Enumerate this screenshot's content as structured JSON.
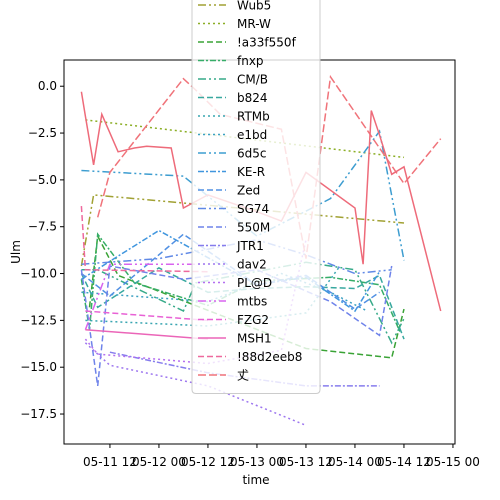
{
  "chart_data": {
    "type": "line",
    "xlabel": "time",
    "ylabel": "Ulm",
    "x_ticks": [
      "05-11 12",
      "05-12 00",
      "05-12 12",
      "05-13 00",
      "05-13 12",
      "05-14 00",
      "05-14 12",
      "05-15 00"
    ],
    "x_range": [
      "05-11 00:45",
      "05-15 00:30"
    ],
    "y_ticks": [
      0.0,
      -2.5,
      -5.0,
      -7.5,
      -10.0,
      -12.5,
      -15.0,
      -17.5
    ],
    "y_tick_labels": [
      "0.0",
      "−2.5",
      "−5.0",
      "−7.5",
      "−10.0",
      "−12.5",
      "−15.0",
      "−17.5"
    ],
    "ylim": [
      -19.1,
      1.4
    ],
    "grid": false,
    "legend_position": "upper center",
    "series": [
      {
        "name": "Wub5",
        "color": "#a1a133",
        "dash": "8,3,2,3,2,3",
        "points": [
          [
            "05-11 05:00",
            -9.6
          ],
          [
            "05-11 08:00",
            -5.8
          ],
          [
            "05-14 12:00",
            -7.3
          ]
        ]
      },
      {
        "name": "MR-W",
        "color": "#8bae25",
        "dash": "2,3",
        "points": [
          [
            "05-11 06:00",
            -1.8
          ],
          [
            "05-14 12:00",
            -3.8
          ]
        ]
      },
      {
        "name": "!a33f550f",
        "color": "#3aa336",
        "dash": "6,3",
        "points": [
          [
            "05-11 07:00",
            -11.8
          ],
          [
            "05-11 09:00",
            -8.0
          ],
          [
            "05-11 14:00",
            -10.1
          ],
          [
            "05-13 12:00",
            -14.0
          ],
          [
            "05-14 09:00",
            -14.5
          ],
          [
            "05-14 12:00",
            -11.9
          ]
        ]
      },
      {
        "name": "fnxp",
        "color": "#36ad68",
        "dash": "6,2,2,2",
        "points": [
          [
            "05-11 05:00",
            -10.3
          ],
          [
            "05-11 07:00",
            -13.0
          ],
          [
            "05-11 09:00",
            -7.9
          ],
          [
            "05-11 18:00",
            -10.5
          ],
          [
            "05-12 12:00",
            -11.7
          ],
          [
            "05-13 00:00",
            -10.4
          ],
          [
            "05-13 18:00",
            -10.2
          ],
          [
            "05-14 06:00",
            -10.6
          ],
          [
            "05-14 11:00",
            -13.1
          ]
        ]
      },
      {
        "name": "CM/B",
        "color": "#37aa89",
        "dash": "8,3,2,3,2,3",
        "points": [
          [
            "05-11 05:00",
            -9.8
          ],
          [
            "05-11 09:00",
            -9.8
          ],
          [
            "05-12 06:00",
            -12.0
          ],
          [
            "05-12 09:00",
            -10.5
          ],
          [
            "05-13 12:00",
            -9.4
          ],
          [
            "05-14 00:00",
            -9.8
          ],
          [
            "05-14 09:00",
            -13.7
          ],
          [
            "05-14 12:00",
            -12.4
          ]
        ]
      },
      {
        "name": "b824",
        "color": "#38a89f",
        "dash": "6,3",
        "points": [
          [
            "05-11 05:00",
            -10.0
          ],
          [
            "05-11 09:00",
            -11.8
          ],
          [
            "05-12 00:00",
            -9.7
          ],
          [
            "05-12 12:00",
            -11.0
          ],
          [
            "05-13 00:00",
            -10.8
          ],
          [
            "05-13 12:00",
            -10.7
          ],
          [
            "05-14 00:00",
            -10.8
          ],
          [
            "05-14 06:00",
            -10.1
          ],
          [
            "05-14 12:00",
            -13.5
          ]
        ]
      },
      {
        "name": "RTMb",
        "color": "#39a5b1",
        "dash": "2,3",
        "points": [
          [
            "05-11 06:00",
            -12.5
          ],
          [
            "05-12 12:00",
            -12.8
          ],
          [
            "05-13 12:00",
            -12.1
          ],
          [
            "05-13 20:00",
            -9.7
          ]
        ]
      },
      {
        "name": "e1bd",
        "color": "#3ba1c1",
        "dash": "2,3",
        "points": [
          [
            "05-11 05:00",
            -11.0
          ],
          [
            "05-12 12:00",
            -11.5
          ],
          [
            "05-13 06:00",
            -10.0
          ],
          [
            "05-13 18:00",
            -11.0
          ],
          [
            "05-14 03:00",
            -12.0
          ]
        ]
      },
      {
        "name": "6d5c",
        "color": "#3d9dd0",
        "dash": "8,3,2,3,2,3",
        "points": [
          [
            "05-11 05:00",
            -4.5
          ],
          [
            "05-12 06:00",
            -4.8
          ],
          [
            "05-13 00:00",
            -8.0
          ],
          [
            "05-13 18:00",
            -6.0
          ],
          [
            "05-14 06:00",
            -2.4
          ],
          [
            "05-14 12:00",
            -9.3
          ]
        ]
      },
      {
        "name": "KE-R",
        "color": "#4096de",
        "dash": "6,2,2,2",
        "points": [
          [
            "05-11 05:00",
            -10.3
          ],
          [
            "05-12 00:00",
            -7.7
          ],
          [
            "05-13 00:00",
            -10.6
          ],
          [
            "05-13 12:00",
            -10.2
          ],
          [
            "05-14 00:00",
            -12.0
          ],
          [
            "05-14 06:00",
            -9.9
          ]
        ]
      },
      {
        "name": "Zed",
        "color": "#5190e3",
        "dash": "6,3",
        "points": [
          [
            "05-11 05:00",
            -10.0
          ],
          [
            "05-11 12:00",
            -11.2
          ],
          [
            "05-12 06:00",
            -7.9
          ],
          [
            "05-13 00:00",
            -10.6
          ],
          [
            "05-13 12:00",
            -10.1
          ],
          [
            "05-14 00:00",
            -11.9
          ],
          [
            "05-14 06:00",
            -11.0
          ]
        ]
      },
      {
        "name": "SG74",
        "color": "#6089e6",
        "dash": "8,3,2,3,2,3",
        "points": [
          [
            "05-11 05:00",
            -9.5
          ],
          [
            "05-12 00:00",
            -9.2
          ],
          [
            "05-13 00:00",
            -8.2
          ],
          [
            "05-13 12:00",
            -9.0
          ],
          [
            "05-14 00:00",
            -10.0
          ],
          [
            "05-14 09:00",
            -9.8
          ]
        ]
      },
      {
        "name": "550M",
        "color": "#6f83ea",
        "dash": "6,3",
        "points": [
          [
            "05-11 05:00",
            -9.8
          ],
          [
            "05-11 09:00",
            -16.0
          ],
          [
            "05-11 12:00",
            -9.6
          ],
          [
            "05-12 06:00",
            -10.3
          ],
          [
            "05-13 00:00",
            -9.8
          ],
          [
            "05-13 18:00",
            -11.5
          ],
          [
            "05-14 06:00",
            -13.3
          ],
          [
            "05-14 09:00",
            -9.6
          ]
        ]
      },
      {
        "name": "JTR1",
        "color": "#867ced",
        "dash": "6,2,2,2",
        "points": [
          [
            "05-11 12:00",
            -14.2
          ],
          [
            "05-12 12:00",
            -15.3
          ],
          [
            "05-13 12:00",
            -16.0
          ],
          [
            "05-14 06:00",
            -16.0
          ]
        ]
      },
      {
        "name": "dav2",
        "color": "#9d76ef",
        "dash": "2,3",
        "points": [
          [
            "05-11 06:00",
            -13.7
          ],
          [
            "05-11 12:00",
            -14.9
          ],
          [
            "05-12 12:00",
            -16.0
          ],
          [
            "05-13 12:00",
            -18.1
          ]
        ]
      },
      {
        "name": "PL@D",
        "color": "#b46ff0",
        "dash": "2,3",
        "points": [
          [
            "05-11 06:00",
            -13.5
          ],
          [
            "05-11 09:00",
            -14.3
          ],
          [
            "05-12 12:00",
            -14.8
          ],
          [
            "05-13 06:00",
            -14.1
          ],
          [
            "05-13 12:00",
            -8.2
          ]
        ]
      },
      {
        "name": "mtbs",
        "color": "#d864ef",
        "dash": "8,3,2,3,2,3",
        "points": [
          [
            "05-11 06:00",
            -13.0
          ],
          [
            "05-11 12:00",
            -9.5
          ],
          [
            "05-12 12:00",
            -9.5
          ]
        ]
      },
      {
        "name": "FZG2",
        "color": "#e861d5",
        "dash": "6,3",
        "points": [
          [
            "05-11 06:00",
            -12.0
          ],
          [
            "05-12 12:00",
            -12.5
          ]
        ]
      },
      {
        "name": "MSH1",
        "color": "#eb65b8",
        "dash": "",
        "points": [
          [
            "05-11 06:00",
            -13.0
          ],
          [
            "05-12 12:00",
            -13.5
          ]
        ]
      },
      {
        "name": "!88d2eeb8",
        "color": "#ee699d",
        "dash": "6,3",
        "points": [
          [
            "05-11 05:00",
            -6.4
          ],
          [
            "05-11 06:00",
            -9.8
          ],
          [
            "05-12 12:00",
            -9.9
          ]
        ]
      },
      {
        "name": "𠀋",
        "color": "#f0737a",
        "dash": "8,3",
        "points": [
          [
            "05-11 09:00",
            -7.0
          ],
          [
            "05-11 12:00",
            -4.6
          ],
          [
            "05-12 06:00",
            0.4
          ],
          [
            "05-12 09:00",
            -0.2
          ],
          [
            "05-12 15:00",
            -1.5
          ],
          [
            "05-13 06:00",
            -2.3
          ],
          [
            "05-13 12:00",
            -9.2
          ],
          [
            "05-13 18:00",
            0.5
          ],
          [
            "05-14 12:00",
            -5.2
          ],
          [
            "05-14 21:00",
            -2.8
          ]
        ]
      },
      {
        "name": "",
        "color": "#ee6b7a",
        "dash": "",
        "points": [
          [
            "05-11 05:00",
            -0.3
          ],
          [
            "05-11 06:00",
            -1.6
          ],
          [
            "05-11 08:00",
            -4.2
          ],
          [
            "05-11 10:00",
            -1.5
          ],
          [
            "05-11 14:00",
            -3.5
          ],
          [
            "05-11 18:00",
            -3.3
          ],
          [
            "05-11 21:00",
            -3.2
          ],
          [
            "05-12 03:00",
            -3.3
          ],
          [
            "05-12 06:00",
            -6.5
          ],
          [
            "05-12 12:00",
            -5.8
          ],
          [
            "05-13 00:00",
            -6.7
          ],
          [
            "05-13 06:00",
            -7.2
          ],
          [
            "05-13 12:00",
            -4.6
          ],
          [
            "05-14 00:00",
            -6.5
          ],
          [
            "05-14 02:00",
            -9.5
          ],
          [
            "05-14 04:00",
            -1.3
          ],
          [
            "05-14 06:00",
            -2.6
          ],
          [
            "05-14 09:00",
            -4.7
          ],
          [
            "05-14 12:00",
            -4.3
          ],
          [
            "05-14 21:00",
            -12.0
          ]
        ]
      }
    ]
  }
}
